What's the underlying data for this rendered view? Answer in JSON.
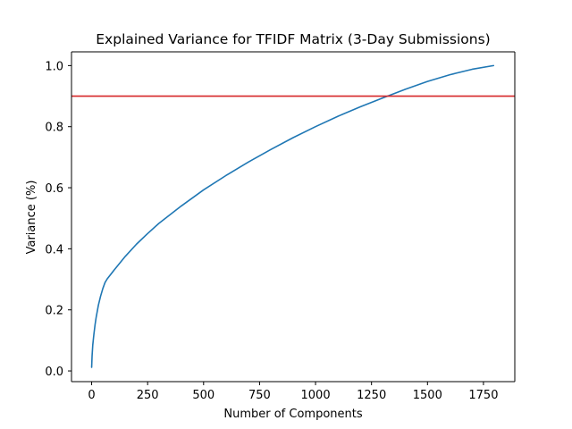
{
  "chart_data": {
    "type": "line",
    "title": "Explained Variance for TFIDF Matrix (3-Day Submissions)",
    "xlabel": "Number of Components",
    "ylabel": "Variance (%)",
    "xlim": [
      -90,
      1890
    ],
    "ylim": [
      -0.035,
      1.045
    ],
    "xticks": [
      0,
      250,
      500,
      750,
      1000,
      1250,
      1500,
      1750
    ],
    "xtick_labels": [
      "0",
      "250",
      "500",
      "750",
      "1000",
      "1250",
      "1500",
      "1750"
    ],
    "yticks": [
      0.0,
      0.2,
      0.4,
      0.6,
      0.8,
      1.0
    ],
    "ytick_labels": [
      "0.0",
      "0.2",
      "0.4",
      "0.6",
      "0.8",
      "1.0"
    ],
    "grid": false,
    "series": [
      {
        "color": "#1f77b4",
        "x": [
          0,
          2,
          5,
          10,
          15,
          20,
          30,
          40,
          50,
          60,
          70,
          100,
          150,
          200,
          250,
          300,
          400,
          500,
          600,
          700,
          800,
          900,
          1000,
          1100,
          1200,
          1300,
          1400,
          1500,
          1600,
          1700,
          1795
        ],
        "y": [
          0.012,
          0.05,
          0.085,
          0.12,
          0.15,
          0.175,
          0.215,
          0.245,
          0.27,
          0.29,
          0.302,
          0.33,
          0.375,
          0.415,
          0.45,
          0.483,
          0.54,
          0.593,
          0.64,
          0.684,
          0.725,
          0.764,
          0.8,
          0.834,
          0.865,
          0.894,
          0.922,
          0.948,
          0.97,
          0.988,
          1.0
        ]
      }
    ],
    "reference_lines": [
      {
        "orientation": "horizontal",
        "y": 0.9,
        "color": "#d62728"
      }
    ]
  }
}
